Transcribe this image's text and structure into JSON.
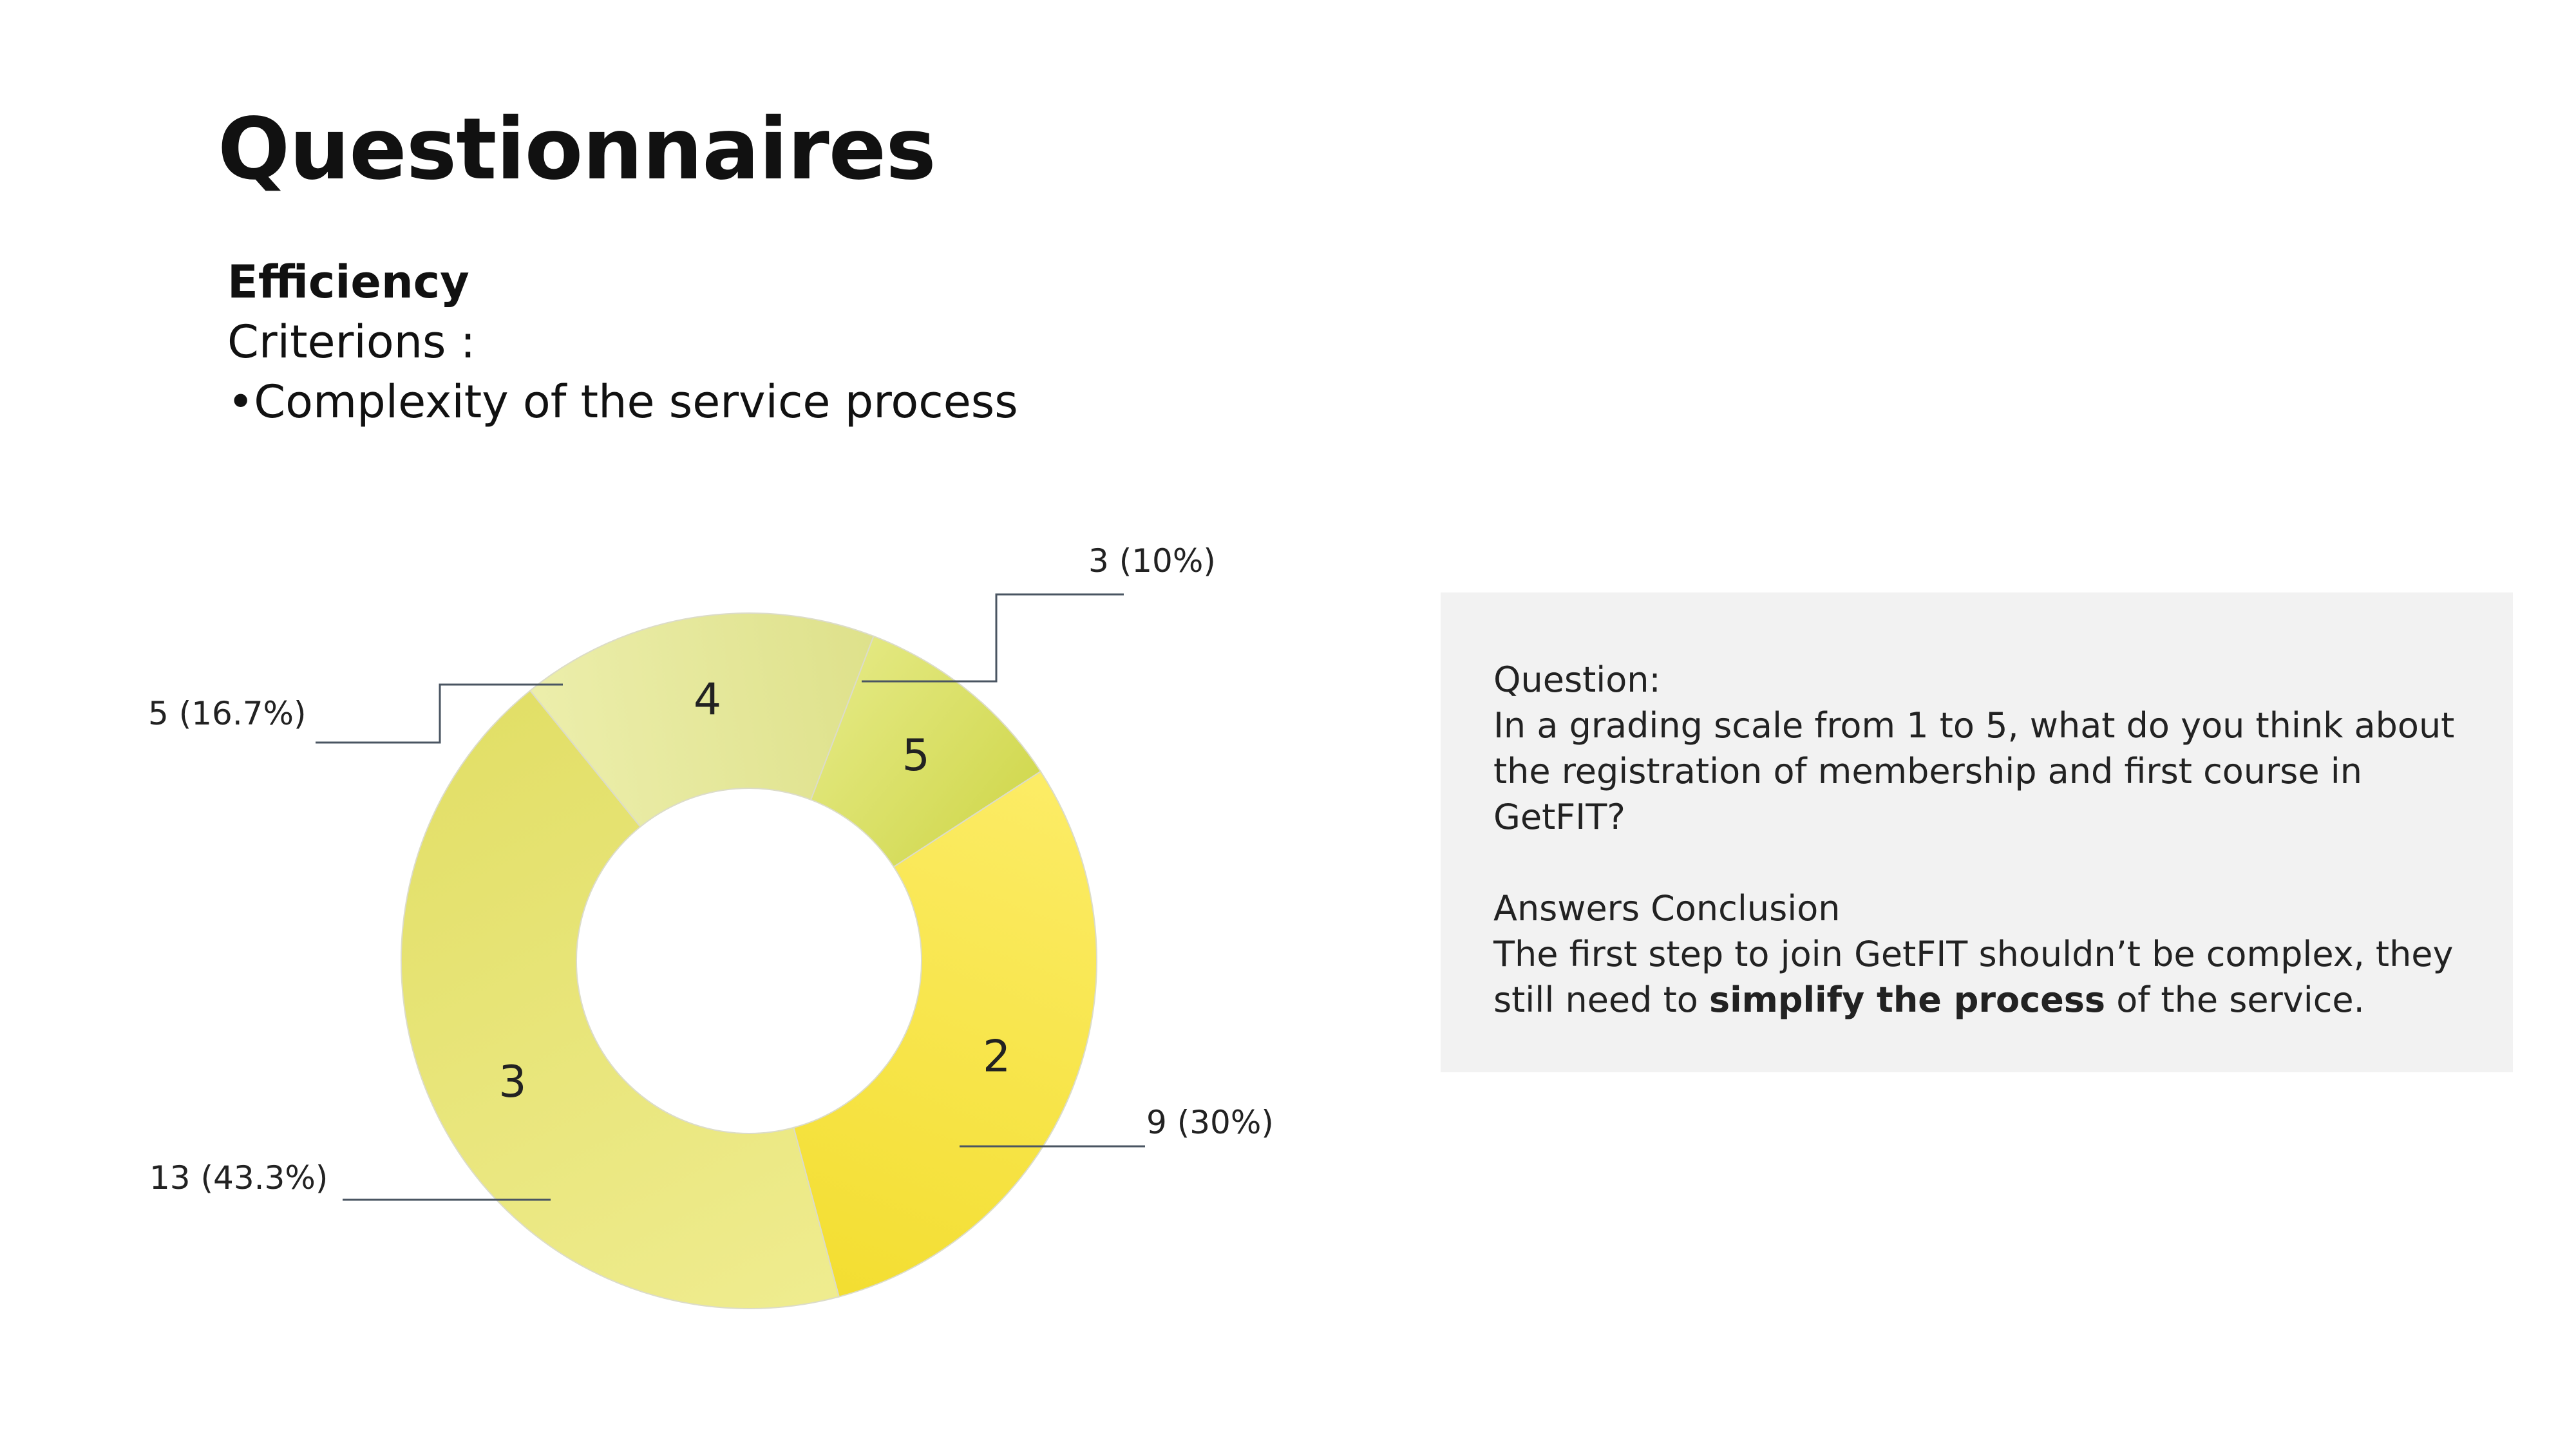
{
  "slide": {
    "title": "Questionnaires",
    "criteria": {
      "heading": "Efficiency",
      "subheading": "Criterions :",
      "bullet": "•",
      "item": "Complexity of the service process"
    }
  },
  "panel": {
    "question_label": "Question:",
    "question_text": "In a grading scale from 1 to 5, what do you think about the registration of membership and first course in GetFIT?",
    "conclusion_label": "Answers Conclusion",
    "conclusion_pre": "The first step to join GetFIT shouldn’t be complex, they still need to ",
    "conclusion_bold": "simplify the process",
    "conclusion_post": " of the service."
  },
  "chart_data": {
    "type": "pie",
    "variant": "donut",
    "title": "",
    "slices": [
      {
        "label": "5",
        "value": 3,
        "callout": "3 (10%)",
        "color": "#d9e055"
      },
      {
        "label": "2",
        "value": 9,
        "callout": "9 (30%)",
        "color": "#fbe533"
      },
      {
        "label": "3",
        "value": 13,
        "callout": "13 (43.3%)",
        "color": "#e9e66a"
      },
      {
        "label": "4",
        "value": 5,
        "callout": "5 (16.7%)",
        "color": "#e5e88f"
      }
    ],
    "start_angle_deg": 21,
    "direction": "clockwise",
    "leader_color": "#4a5562"
  }
}
